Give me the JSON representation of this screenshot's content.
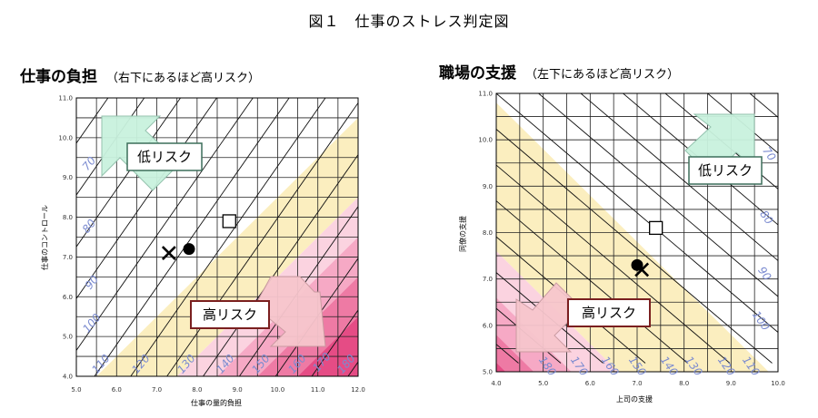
{
  "figure_title": "図１　仕事のストレス判定図",
  "chart_data": [
    {
      "type": "scatter",
      "title": "仕事の負担",
      "subtitle": "（右下にあるほど高リスク）",
      "xlabel": "仕事の量的負担",
      "ylabel": "仕事のコントロール",
      "xlim": [
        5.0,
        12.0
      ],
      "ylim": [
        4.0,
        11.0
      ],
      "xticks": [
        "5.0",
        "6.0",
        "7.0",
        "8.0",
        "9.0",
        "10.0",
        "11.0",
        "12.0"
      ],
      "yticks": [
        "4.0",
        "5.0",
        "6.0",
        "7.0",
        "8.0",
        "9.0",
        "10.0",
        "11.0"
      ],
      "grid": true,
      "contour_labels": [
        "70",
        "80",
        "90",
        "100",
        "110",
        "120",
        "130",
        "140",
        "150",
        "160",
        "170",
        "180"
      ],
      "low_risk_label": "低リスク",
      "high_risk_label": "高リスク",
      "points": [
        {
          "marker": "x",
          "x": 7.3,
          "y": 7.1
        },
        {
          "marker": "circle",
          "x": 7.8,
          "y": 7.2
        },
        {
          "marker": "square",
          "x": 8.8,
          "y": 7.9
        }
      ]
    },
    {
      "type": "scatter",
      "title": "職場の支援",
      "subtitle": "（左下にあるほど高リスク）",
      "xlabel": "上司の支援",
      "ylabel": "同僚の支援",
      "xlim": [
        4.0,
        10.0
      ],
      "ylim": [
        5.0,
        11.0
      ],
      "xticks": [
        "4.0",
        "5.0",
        "6.0",
        "7.0",
        "8.0",
        "9.0",
        "10.0"
      ],
      "yticks": [
        "5.0",
        "6.0",
        "7.0",
        "8.0",
        "9.0",
        "10.0",
        "11.0"
      ],
      "grid": true,
      "contour_labels": [
        "70",
        "80",
        "90",
        "100",
        "110",
        "120",
        "130",
        "140",
        "150",
        "160",
        "170",
        "180"
      ],
      "low_risk_label": "低リスク",
      "high_risk_label": "高リスク",
      "points": [
        {
          "marker": "x",
          "x": 7.1,
          "y": 7.2
        },
        {
          "marker": "circle",
          "x": 7.0,
          "y": 7.3
        },
        {
          "marker": "square",
          "x": 7.4,
          "y": 8.1
        }
      ]
    }
  ],
  "colors": {
    "yellow_band": "#fbeebf",
    "pink_light": "#fbd3e0",
    "pink_mid": "#f6a9c5",
    "pink_dark": "#ee7aa4",
    "pink_deep": "#e54c85",
    "grid": "#222222",
    "contour_label": "#7b8bd0",
    "low_arrow": "#c9f2de",
    "high_arrow": "#f7c6cd",
    "risk_box_border": "#7a1f1f"
  }
}
